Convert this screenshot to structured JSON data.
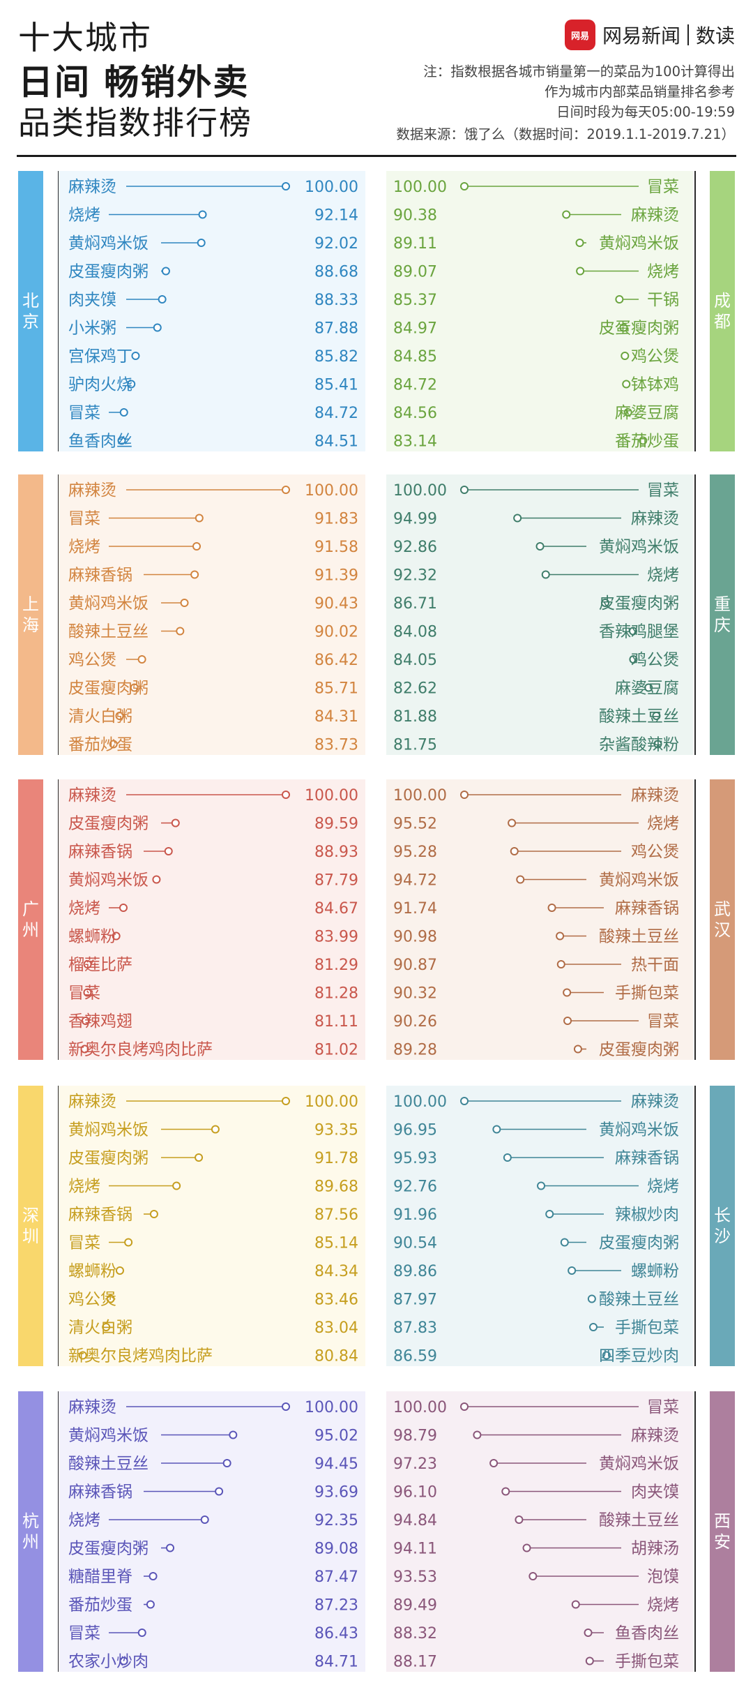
{
  "header": {
    "title_line1": "十大城市",
    "title_line2": "日间 畅销外卖",
    "title_line3": "品类指数排行榜",
    "brand_logo_text": "网易",
    "brand_name": "网易新闻",
    "brand_sub": "数读",
    "note_line1": "注：指数根据各城市销量第一的菜品为100计算得出",
    "note_line2": "作为城市内部菜品销量排名参考",
    "note_line3": "日间时段为每天05:00-19:59",
    "source": "数据来源：饿了么（数据时间：2019.1.1-2019.7.21）"
  },
  "colors": {
    "北京": {
      "band": "#5ab4e6",
      "bg": "#eef7fd",
      "text": "#2f86c0"
    },
    "成都": {
      "band": "#a6d47e",
      "bg": "#f3f9ed",
      "text": "#6aa43e"
    },
    "上海": {
      "band": "#f3b98a",
      "bg": "#fdf4ec",
      "text": "#d2843f"
    },
    "重庆": {
      "band": "#6aa492",
      "bg": "#edf5f2",
      "text": "#3f7d6a"
    },
    "广州": {
      "band": "#e9857a",
      "bg": "#fcefed",
      "text": "#c9574c"
    },
    "武汉": {
      "band": "#d59a78",
      "bg": "#faf2ec",
      "text": "#b06c46"
    },
    "深圳": {
      "band": "#f9d76c",
      "bg": "#fefaeb",
      "text": "#c69e1f"
    },
    "长沙": {
      "band": "#6aa9b8",
      "bg": "#edf5f7",
      "text": "#3f8596"
    },
    "杭州": {
      "band": "#9490e2",
      "bg": "#f2f1fc",
      "text": "#5a55b8"
    },
    "西安": {
      "band": "#ad7f9e",
      "bg": "#f7eff4",
      "text": "#8a5679"
    }
  },
  "chart_data": [
    {
      "type": "lollipop",
      "city": "北京",
      "categories": [
        "麻辣烫",
        "烧烤",
        "黄焖鸡米饭",
        "皮蛋瘦肉粥",
        "肉夹馍",
        "小米粥",
        "宫保鸡丁",
        "驴肉火烧",
        "冒菜",
        "鱼香肉丝"
      ],
      "values": [
        100.0,
        92.14,
        92.02,
        88.68,
        88.33,
        87.88,
        85.82,
        85.41,
        84.72,
        84.51
      ],
      "value_labels": [
        "100.00",
        "92.14",
        "92.02",
        "88.68",
        "88.33",
        "87.88",
        "85.82",
        "85.41",
        "84.72",
        "84.51"
      ]
    },
    {
      "type": "lollipop",
      "city": "成都",
      "categories": [
        "冒菜",
        "麻辣烫",
        "黄焖鸡米饭",
        "烧烤",
        "干锅",
        "皮蛋瘦肉粥",
        "鸡公煲",
        "钵钵鸡",
        "麻婆豆腐",
        "番茄炒蛋"
      ],
      "values": [
        100.0,
        90.38,
        89.11,
        89.07,
        85.37,
        84.97,
        84.85,
        84.72,
        84.56,
        83.14
      ],
      "value_labels": [
        "100.00",
        "90.38",
        "89.11",
        "89.07",
        "85.37",
        "84.97",
        "84.85",
        "84.72",
        "84.56",
        "83.14"
      ]
    },
    {
      "type": "lollipop",
      "city": "上海",
      "categories": [
        "麻辣烫",
        "冒菜",
        "烧烤",
        "麻辣香锅",
        "黄焖鸡米饭",
        "酸辣土豆丝",
        "鸡公煲",
        "皮蛋瘦肉粥",
        "清火白粥",
        "番茄炒蛋"
      ],
      "values": [
        100.0,
        91.83,
        91.58,
        91.39,
        90.43,
        90.02,
        86.42,
        85.71,
        84.31,
        83.73
      ],
      "value_labels": [
        "100.00",
        "91.83",
        "91.58",
        "91.39",
        "90.43",
        "90.02",
        "86.42",
        "85.71",
        "84.31",
        "83.73"
      ]
    },
    {
      "type": "lollipop",
      "city": "重庆",
      "categories": [
        "冒菜",
        "麻辣烫",
        "黄焖鸡米饭",
        "烧烤",
        "皮蛋瘦肉粥",
        "香辣鸡腿堡",
        "鸡公煲",
        "麻婆豆腐",
        "酸辣土豆丝",
        "杂酱酸辣粉"
      ],
      "values": [
        100.0,
        94.99,
        92.86,
        92.32,
        86.71,
        84.08,
        84.05,
        82.62,
        81.88,
        81.75
      ],
      "value_labels": [
        "100.00",
        "94.99",
        "92.86",
        "92.32",
        "86.71",
        "84.08",
        "84.05",
        "82.62",
        "81.88",
        "81.75"
      ]
    },
    {
      "type": "lollipop",
      "city": "广州",
      "categories": [
        "麻辣烫",
        "皮蛋瘦肉粥",
        "麻辣香锅",
        "黄焖鸡米饭",
        "烧烤",
        "螺蛳粉",
        "榴莲比萨",
        "冒菜",
        "香辣鸡翅",
        "新奥尔良烤鸡肉比萨"
      ],
      "values": [
        100.0,
        89.59,
        88.93,
        87.79,
        84.67,
        83.99,
        81.29,
        81.28,
        81.11,
        81.02
      ],
      "value_labels": [
        "100.00",
        "89.59",
        "88.93",
        "87.79",
        "84.67",
        "83.99",
        "81.29",
        "81.28",
        "81.11",
        "81.02"
      ]
    },
    {
      "type": "lollipop",
      "city": "武汉",
      "categories": [
        "麻辣烫",
        "烧烤",
        "鸡公煲",
        "黄焖鸡米饭",
        "麻辣香锅",
        "酸辣土豆丝",
        "热干面",
        "手撕包菜",
        "冒菜",
        "皮蛋瘦肉粥"
      ],
      "values": [
        100.0,
        95.52,
        95.28,
        94.72,
        91.74,
        90.98,
        90.87,
        90.32,
        90.26,
        89.28
      ],
      "value_labels": [
        "100.00",
        "95.52",
        "95.28",
        "94.72",
        "91.74",
        "90.98",
        "90.87",
        "90.32",
        "90.26",
        "89.28"
      ]
    },
    {
      "type": "lollipop",
      "city": "深圳",
      "categories": [
        "麻辣烫",
        "黄焖鸡米饭",
        "皮蛋瘦肉粥",
        "烧烤",
        "麻辣香锅",
        "冒菜",
        "螺蛳粉",
        "鸡公煲",
        "清火白粥",
        "新奥尔良烤鸡肉比萨"
      ],
      "values": [
        100.0,
        93.35,
        91.78,
        89.68,
        87.56,
        85.14,
        84.34,
        83.46,
        83.04,
        80.84
      ],
      "value_labels": [
        "100.00",
        "93.35",
        "91.78",
        "89.68",
        "87.56",
        "85.14",
        "84.34",
        "83.46",
        "83.04",
        "80.84"
      ]
    },
    {
      "type": "lollipop",
      "city": "长沙",
      "categories": [
        "麻辣烫",
        "黄焖鸡米饭",
        "麻辣香锅",
        "烧烤",
        "辣椒炒肉",
        "皮蛋瘦肉粥",
        "螺蛳粉",
        "酸辣土豆丝",
        "手撕包菜",
        "四季豆炒肉"
      ],
      "values": [
        100.0,
        96.95,
        95.93,
        92.76,
        91.96,
        90.54,
        89.86,
        87.97,
        87.83,
        86.59
      ],
      "value_labels": [
        "100.00",
        "96.95",
        "95.93",
        "92.76",
        "91.96",
        "90.54",
        "89.86",
        "87.97",
        "87.83",
        "86.59"
      ]
    },
    {
      "type": "lollipop",
      "city": "杭州",
      "categories": [
        "麻辣烫",
        "黄焖鸡米饭",
        "酸辣土豆丝",
        "麻辣香锅",
        "烧烤",
        "皮蛋瘦肉粥",
        "糖醋里脊",
        "番茄炒蛋",
        "冒菜",
        "农家小炒肉"
      ],
      "values": [
        100.0,
        95.02,
        94.45,
        93.69,
        92.35,
        89.08,
        87.47,
        87.23,
        86.43,
        84.71
      ],
      "value_labels": [
        "100.00",
        "95.02",
        "94.45",
        "93.69",
        "92.35",
        "89.08",
        "87.47",
        "87.23",
        "86.43",
        "84.71"
      ]
    },
    {
      "type": "lollipop",
      "city": "西安",
      "categories": [
        "冒菜",
        "麻辣烫",
        "黄焖鸡米饭",
        "肉夹馍",
        "酸辣土豆丝",
        "胡辣汤",
        "泡馍",
        "烧烤",
        "鱼香肉丝",
        "手撕包菜"
      ],
      "values": [
        100.0,
        98.79,
        97.23,
        96.1,
        94.84,
        94.11,
        93.53,
        89.49,
        88.32,
        88.17
      ],
      "value_labels": [
        "100.00",
        "98.79",
        "97.23",
        "96.10",
        "94.84",
        "94.11",
        "93.53",
        "89.49",
        "88.32",
        "88.17"
      ]
    }
  ]
}
